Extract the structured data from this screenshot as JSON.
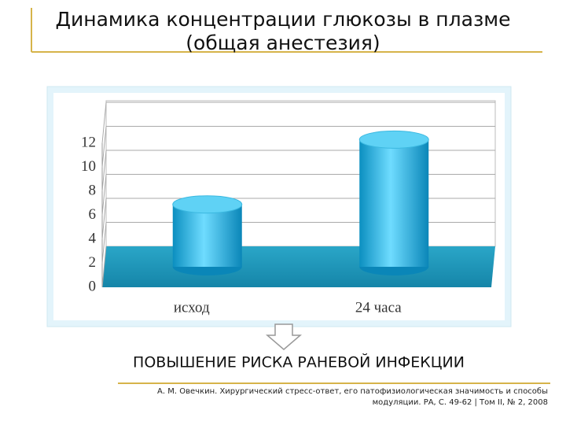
{
  "slide": {
    "title": [
      "Динамика концентрации глюкозы в плазме",
      "(общая анестезия)"
    ],
    "conclusion": "ПОВЫШЕНИЕ РИСКА РАНЕВОЙ ИНФЕКЦИИ",
    "citation": [
      "А. М. Овечкин. Хирургический стресс-ответ, его патофизиологическая значимость и способы",
      "модуляции. РА, С. 49-62 | Том II, № 2, 2008"
    ]
  },
  "chart_data": {
    "type": "bar3d",
    "categories": [
      "исход",
      "24 часа"
    ],
    "values": [
      5.2,
      10.6
    ],
    "color": "#1fb2e0",
    "ylim": [
      0,
      12
    ],
    "yticks": [
      0,
      2,
      4,
      6,
      8,
      10,
      12
    ],
    "grid": true
  }
}
